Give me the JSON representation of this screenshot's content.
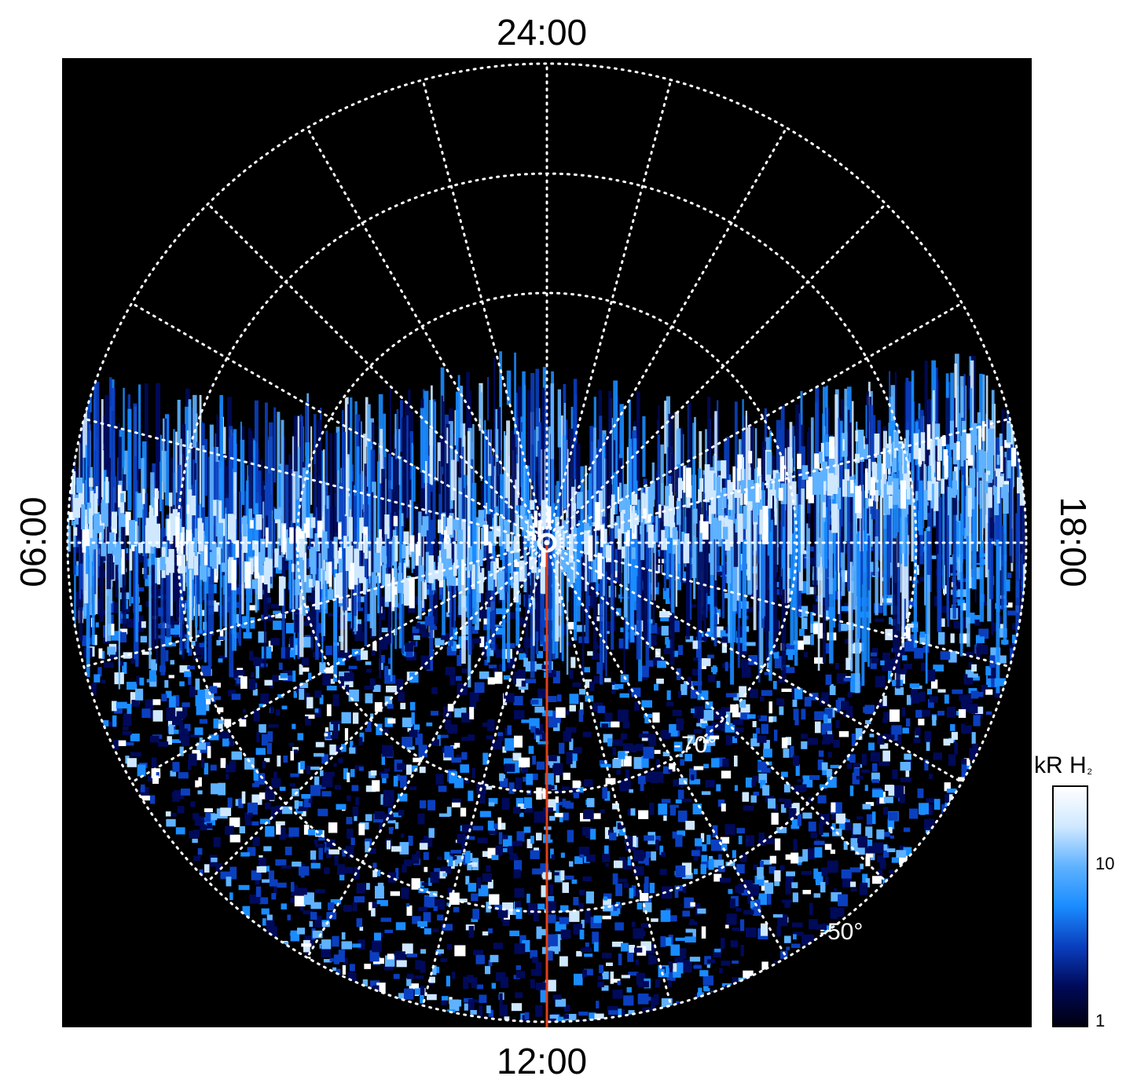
{
  "local_time_labels": {
    "top": "24:00",
    "bottom": "12:00",
    "left": "06:00",
    "right": "18:00"
  },
  "latitude_labels": [
    "-70°",
    "-50°"
  ],
  "colorbar": {
    "title": "kR H",
    "title_subscript": "2",
    "ticks": [
      "10",
      "1"
    ],
    "scale": "log",
    "colors": [
      "#000010",
      "#000a5a",
      "#0a3fbf",
      "#1a8cff",
      "#5fb2ff",
      "#cfe8ff",
      "#ffffff"
    ]
  },
  "plot_colors": {
    "background": "#000000",
    "grid": "#ffffff",
    "meridian_line": "#e0401a"
  }
}
